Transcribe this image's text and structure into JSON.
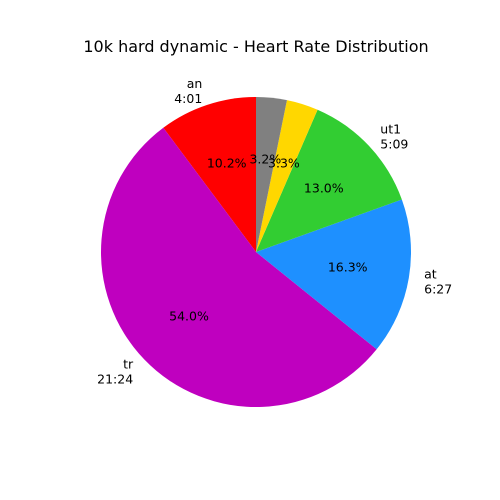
{
  "chart_data": {
    "type": "pie",
    "title": "10k hard dynamic - Heart Rate Distribution",
    "slices": [
      {
        "name": "an",
        "time": "4:01",
        "pct_label": "10.2%",
        "value": 10.2,
        "color": "#ff0000"
      },
      {
        "name": "tr",
        "time": "21:24",
        "pct_label": "54.0%",
        "value": 54.0,
        "color": "#bf00bf"
      },
      {
        "name": "at",
        "time": "6:27",
        "pct_label": "16.3%",
        "value": 16.3,
        "color": "#1e90ff"
      },
      {
        "name": "ut1",
        "time": "5:09",
        "pct_label": "13.0%",
        "value": 13.0,
        "color": "#32cd32"
      },
      {
        "name": "",
        "time": "",
        "pct_label": "3.3%",
        "value": 3.3,
        "color": "#ffd700"
      },
      {
        "name": "",
        "time": "",
        "pct_label": "3.2%",
        "value": 3.2,
        "color": "#808080"
      }
    ],
    "start_angle_deg": 90,
    "direction": "counterclockwise",
    "legend": "none"
  }
}
